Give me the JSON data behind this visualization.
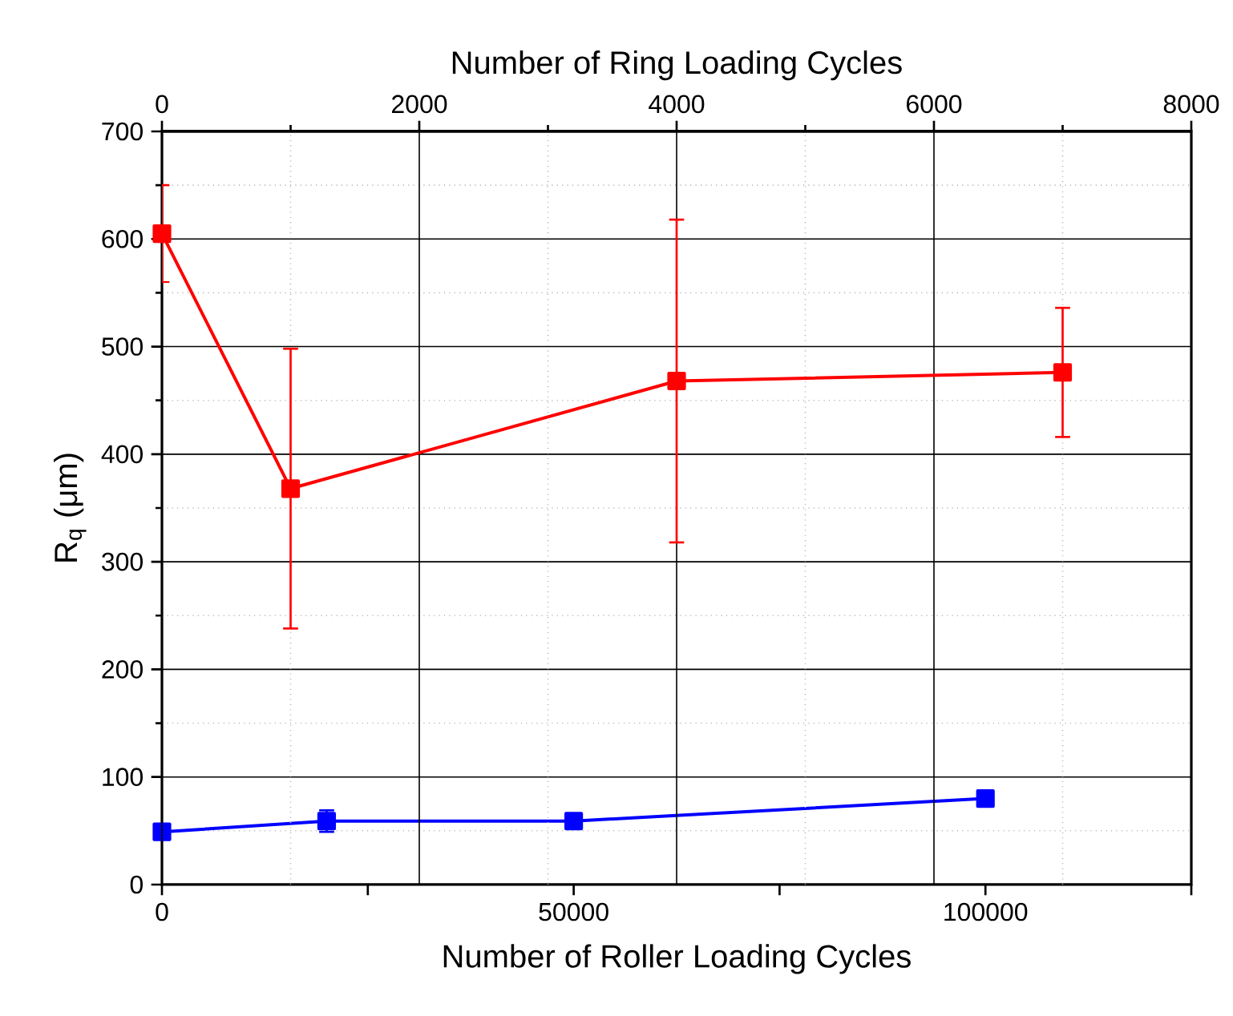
{
  "chart_data": {
    "type": "line",
    "xlabel": "Number of Roller Loading Cycles",
    "x2label": "Number of Ring Loading Cycles",
    "ylabel": "R$_{q}$ (μm)",
    "xlim": [
      0,
      125000
    ],
    "xticks": [
      0,
      {
        "value": 25000,
        "label": null
      },
      50000,
      {
        "value": 75000,
        "label": null
      },
      100000,
      {
        "value": 125000,
        "label": null
      }
    ],
    "x2lim": [
      0,
      8000
    ],
    "x2ticks": [
      0,
      2000,
      4000,
      6000,
      8000
    ],
    "ylim": [
      0,
      700
    ],
    "yticks": [
      0,
      100,
      200,
      300,
      400,
      500,
      600,
      700
    ],
    "grid": true,
    "marker": "square",
    "line_style": "solid",
    "series": [
      {
        "color": "#ff0000",
        "axis": "x2",
        "x": [
          0,
          1000,
          4000,
          7000
        ],
        "values": [
          605,
          368,
          468,
          476
        ],
        "errors": [
          45,
          130,
          150,
          60
        ]
      },
      {
        "color": "#0000ff",
        "x": [
          0,
          20000,
          50000,
          100000
        ],
        "values": [
          49,
          59,
          59,
          80
        ],
        "errors": [
          null,
          10,
          null,
          null
        ]
      }
    ]
  }
}
